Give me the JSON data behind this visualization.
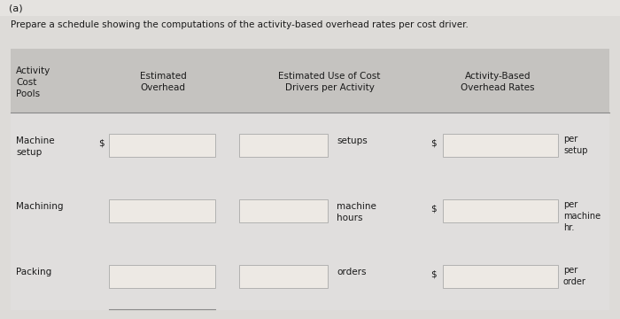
{
  "title_label": "(a)",
  "subtitle": "Prepare a schedule showing the computations of the activity-based overhead rates per cost driver.",
  "bg_color": "#dddbd8",
  "table_bg": "#e0dedd",
  "header_bg": "#c5c3c0",
  "input_box_color": "#ede9e4",
  "input_box_border": "#aaaaaa",
  "text_color": "#1a1a1a",
  "header_row": {
    "col1": "Activity\nCost\nPools",
    "col2": "Estimated\nOverhead",
    "col3": "Estimated Use of Cost\nDrivers per Activity",
    "col4": "Activity-Based\nOverhead Rates"
  },
  "rows": [
    {
      "activity": "Machine\nsetup",
      "driver_label": "setups",
      "rate_label": "per\nsetup"
    },
    {
      "activity": "Machining",
      "driver_label": "machine\nhours",
      "rate_label": "per\nmachine\nhr."
    },
    {
      "activity": "Packing",
      "driver_label": "orders",
      "rate_label": "per\norder"
    }
  ]
}
